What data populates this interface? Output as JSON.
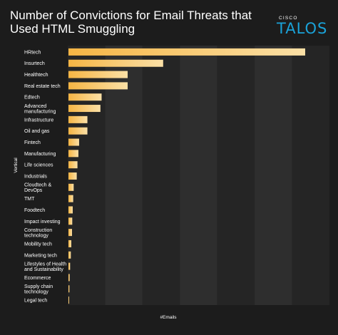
{
  "title": "Number of Convictions for Email Threats that Used HTML Smuggling",
  "brand": {
    "small": "CISCO",
    "large": "TALOS",
    "color": "#1aa2d8"
  },
  "chart_data": {
    "type": "bar",
    "orientation": "horizontal",
    "title": "Number of Convictions for Email Threats that Used HTML Smuggling",
    "xlabel": "#Emails",
    "ylabel": "Vertical",
    "x_tick_labels": false,
    "xlim": [
      0,
      100
    ],
    "grid": "alternating vertical bands",
    "bar_color_start": "#f6b544",
    "bar_color_end": "#fbe0a6",
    "categories": [
      [
        "HRtech"
      ],
      [
        "Insurtech"
      ],
      [
        "Healthtech"
      ],
      [
        "Real estate tech"
      ],
      [
        "Edtech"
      ],
      [
        "Advanced",
        "manufacturing"
      ],
      [
        "Infrastructure"
      ],
      [
        "Oil and gas"
      ],
      [
        "Fintech"
      ],
      [
        "Manufacturing"
      ],
      [
        "Life sciences"
      ],
      [
        "Industrials"
      ],
      [
        "Cloudtech &",
        "DevOps"
      ],
      [
        "TMT"
      ],
      [
        "Foodtech"
      ],
      [
        "Impact investing"
      ],
      [
        "Construction",
        "technology"
      ],
      [
        "Mobility tech"
      ],
      [
        "Marketing tech"
      ],
      [
        "Lifestyles of Health",
        "and Sustainability"
      ],
      [
        "Ecommerce"
      ],
      [
        "Supply chain",
        "technology"
      ],
      [
        "Legal tech"
      ]
    ],
    "values": [
      100,
      40,
      25,
      25,
      14,
      13.5,
      8,
      8,
      4.5,
      4.2,
      3.8,
      3.5,
      2.2,
      2,
      1.8,
      1.6,
      1.5,
      1.2,
      1,
      0.7,
      0.5,
      0.4,
      0.3
    ]
  }
}
